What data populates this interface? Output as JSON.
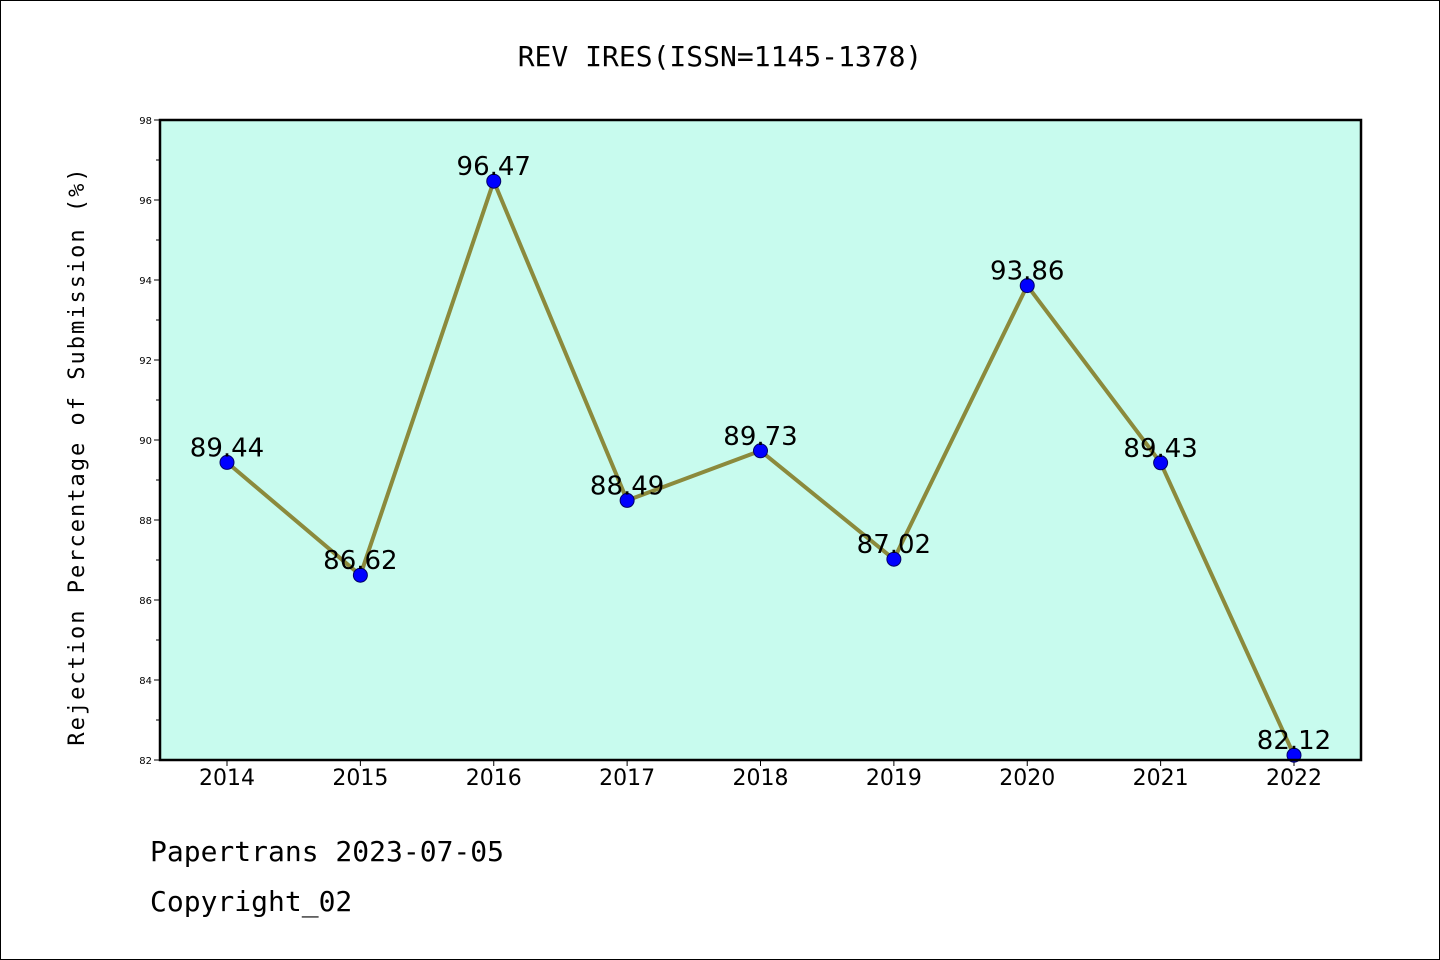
{
  "chart_data": {
    "type": "line",
    "title": "REV IRES(ISSN=1145-1378)",
    "xlabel": "",
    "ylabel": "Rejection Percentage of Submission (%)",
    "categories": [
      "2014",
      "2015",
      "2016",
      "2017",
      "2018",
      "2019",
      "2020",
      "2021",
      "2022"
    ],
    "values": [
      89.44,
      86.62,
      96.47,
      88.49,
      89.73,
      87.02,
      93.86,
      89.43,
      82.12
    ],
    "data_labels": [
      "89.44",
      "86.62",
      "96.47",
      "88.49",
      "89.73",
      "87.02",
      "93.86",
      "89.43",
      "82.12"
    ],
    "y_ticks": [
      "82",
      "84",
      "86",
      "88",
      "90",
      "92",
      "94",
      "96",
      "98"
    ],
    "ylim": [
      82,
      98
    ],
    "grid": false,
    "colors": {
      "plot_background": "#c8fbee",
      "line": "#8b8a3c",
      "marker": "#0000ff"
    }
  },
  "footer": {
    "line1": "Papertrans 2023-07-05",
    "line2": "Copyright_02"
  }
}
